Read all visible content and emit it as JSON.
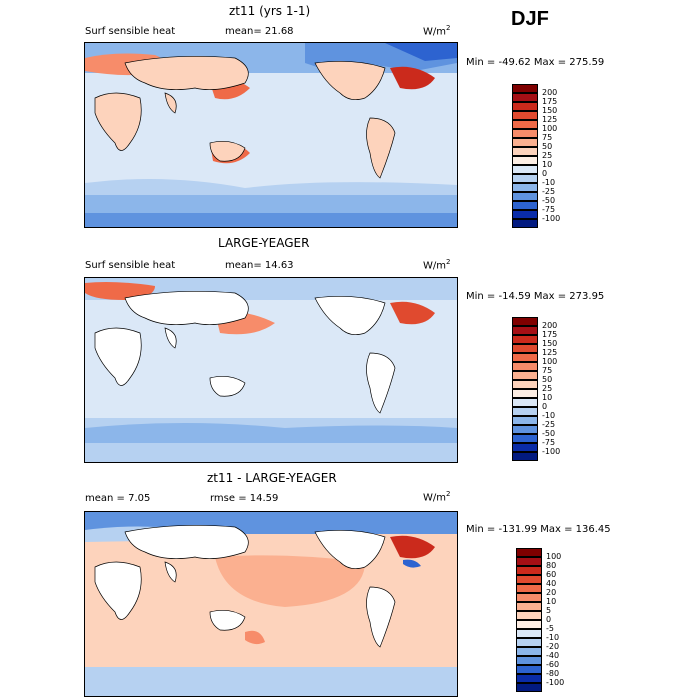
{
  "season": "DJF",
  "panels": [
    {
      "title": "zt11 (yrs 1-1)",
      "left_text": "Surf sensible heat",
      "mid_text": "mean=  21.68",
      "units": "W/m",
      "units_sup": "2",
      "minmax": "Min = -49.62  Max = 275.59",
      "colorbar": {
        "labels": [
          "200",
          "175",
          "150",
          "125",
          "100",
          "75",
          "50",
          "25",
          "10",
          "0",
          "-10",
          "-25",
          "-50",
          "-75",
          "-100"
        ],
        "colors": [
          "#7f0000",
          "#a50f15",
          "#cb2a1c",
          "#e04a2f",
          "#ef6a48",
          "#f78c6a",
          "#fbb090",
          "#fdd3bc",
          "#fdeee4",
          "#dbe8f7",
          "#b6d1f1",
          "#8cb6ea",
          "#5f93df",
          "#2d63d0",
          "#0a2ca8",
          "#021a80"
        ]
      }
    },
    {
      "title": "LARGE-YEAGER",
      "left_text": "Surf sensible heat",
      "mid_text": "mean=  14.63",
      "units": "W/m",
      "units_sup": "2",
      "minmax": "Min = -14.59  Max = 273.95",
      "colorbar": {
        "labels": [
          "200",
          "175",
          "150",
          "125",
          "100",
          "75",
          "50",
          "25",
          "10",
          "0",
          "-10",
          "-25",
          "-50",
          "-75",
          "-100"
        ],
        "colors": [
          "#7f0000",
          "#a50f15",
          "#cb2a1c",
          "#e04a2f",
          "#ef6a48",
          "#f78c6a",
          "#fbb090",
          "#fdd3bc",
          "#fdeee4",
          "#dbe8f7",
          "#b6d1f1",
          "#8cb6ea",
          "#5f93df",
          "#2d63d0",
          "#0a2ca8",
          "#021a80"
        ]
      }
    },
    {
      "title": "zt11 - LARGE-YEAGER",
      "left_text": "mean =   7.05",
      "mid_text": "rmse =   14.59",
      "units": "W/m",
      "units_sup": "2",
      "minmax": "Min = -131.99  Max = 136.45",
      "colorbar": {
        "labels": [
          "100",
          "80",
          "60",
          "40",
          "20",
          "10",
          "5",
          "0",
          "-5",
          "-10",
          "-20",
          "-40",
          "-60",
          "-80",
          "-100"
        ],
        "colors": [
          "#7f0000",
          "#a50f15",
          "#cb2a1c",
          "#e04a2f",
          "#ef6a48",
          "#f78c6a",
          "#fbb090",
          "#fdd3bc",
          "#fdeee4",
          "#dbe8f7",
          "#b6d1f1",
          "#8cb6ea",
          "#5f93df",
          "#2d63d0",
          "#0a2ca8",
          "#021a80"
        ]
      }
    }
  ],
  "chart_data": {
    "type": "heatmap",
    "variable": "Surf sensible heat",
    "season": "DJF",
    "panels": [
      {
        "title": "zt11 (yrs 1-1)",
        "mean": 21.68,
        "min": -49.62,
        "max": 275.59,
        "units": "W/m2",
        "levels": [
          -100,
          -75,
          -50,
          -25,
          -10,
          0,
          10,
          25,
          50,
          75,
          100,
          125,
          150,
          175,
          200
        ]
      },
      {
        "title": "LARGE-YEAGER",
        "mean": 14.63,
        "min": -14.59,
        "max": 273.95,
        "units": "W/m2",
        "levels": [
          -100,
          -75,
          -50,
          -25,
          -10,
          0,
          10,
          25,
          50,
          75,
          100,
          125,
          150,
          175,
          200
        ]
      },
      {
        "title": "zt11 - LARGE-YEAGER",
        "mean": 7.05,
        "rmse": 14.59,
        "min": -131.99,
        "max": 136.45,
        "units": "W/m2",
        "levels": [
          -100,
          -80,
          -60,
          -40,
          -20,
          -10,
          -5,
          0,
          5,
          10,
          20,
          40,
          60,
          80,
          100
        ]
      }
    ]
  }
}
